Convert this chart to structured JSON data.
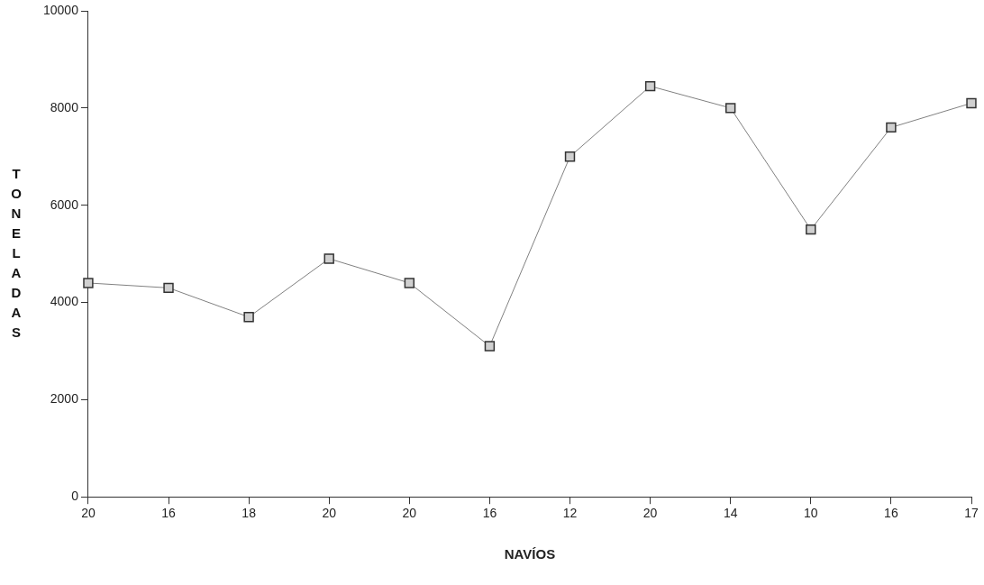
{
  "chart_data": {
    "type": "line",
    "xlabel": "NAVÍOS",
    "ylabel": "TONELADAS",
    "categories": [
      "20",
      "16",
      "18",
      "20",
      "20",
      "16",
      "12",
      "20",
      "14",
      "10",
      "16",
      "17"
    ],
    "series": [
      {
        "color": "#808080",
        "values": [
          4400,
          4300,
          3700,
          4900,
          4400,
          3100,
          7000,
          8450,
          8000,
          5500,
          7600,
          8100
        ]
      }
    ],
    "ylim": [
      0,
      10000
    ],
    "yticks": [
      0,
      2000,
      4000,
      6000,
      8000,
      10000
    ],
    "grid": false,
    "legend": false,
    "marker": "square",
    "line_style": "solid"
  }
}
